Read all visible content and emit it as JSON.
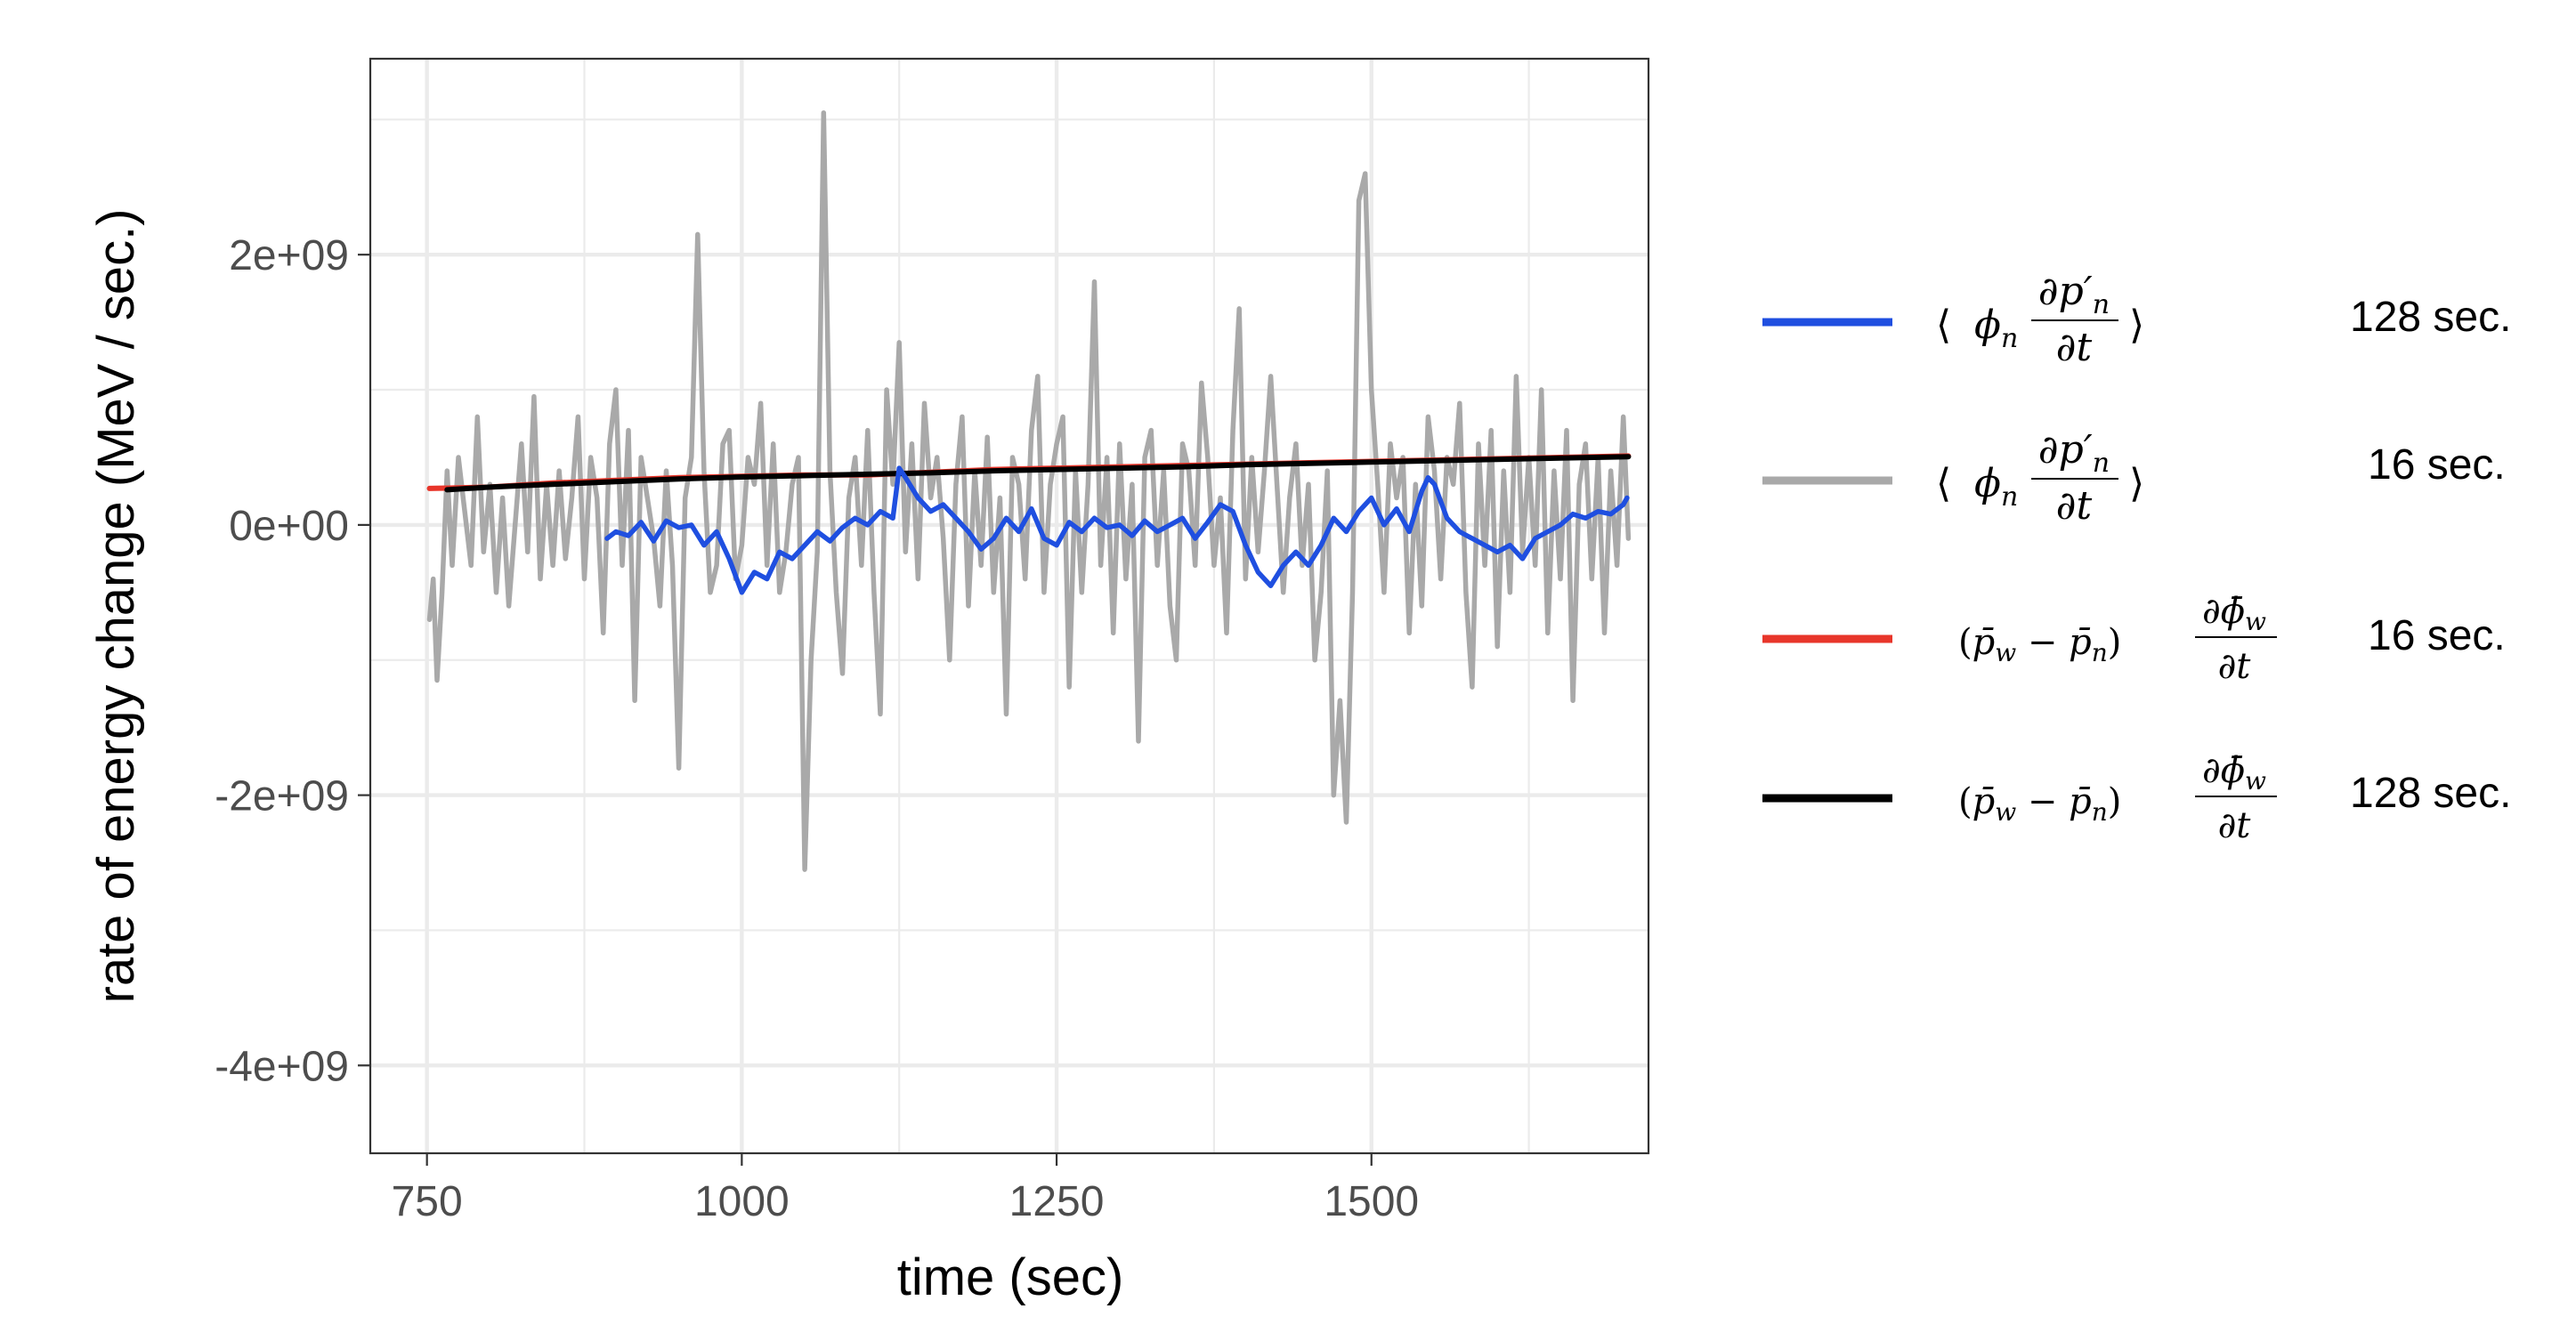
{
  "chart_data": {
    "type": "line",
    "xlabel": "time (sec)",
    "ylabel": "rate of energy change (MeV / sec.)",
    "xlim": [
      705,
      1720
    ],
    "ylim": [
      -4650000000.0,
      3450000000.0
    ],
    "x_ticks": [
      750,
      1000,
      1250,
      1500
    ],
    "x_tick_labels": [
      "750",
      "1000",
      "1250",
      "1500"
    ],
    "y_ticks": [
      -4000000000.0,
      -2000000000.0,
      0,
      2000000000.0
    ],
    "y_tick_labels": [
      "-4e+09",
      "-2e+09",
      "0e+00",
      "2e+09"
    ],
    "grid": true,
    "legend_position": "right",
    "series": [
      {
        "name": "⟨φn ∂p′n/∂t⟩ 128 sec.",
        "legend_formula": "⟨ φn ∂p′n/∂t ⟩",
        "legend_window": "128 sec.",
        "color": "#1f4fe0",
        "x": [
          893,
          900,
          910,
          920,
          930,
          940,
          950,
          960,
          970,
          980,
          990,
          1000,
          1010,
          1020,
          1030,
          1040,
          1050,
          1060,
          1070,
          1080,
          1090,
          1100,
          1110,
          1120,
          1125,
          1130,
          1140,
          1150,
          1160,
          1170,
          1180,
          1190,
          1200,
          1210,
          1220,
          1230,
          1240,
          1250,
          1260,
          1270,
          1280,
          1290,
          1300,
          1310,
          1320,
          1330,
          1340,
          1350,
          1360,
          1370,
          1380,
          1390,
          1400,
          1410,
          1420,
          1430,
          1440,
          1450,
          1460,
          1470,
          1480,
          1490,
          1500,
          1510,
          1520,
          1530,
          1540,
          1545,
          1550,
          1560,
          1570,
          1580,
          1590,
          1600,
          1610,
          1620,
          1630,
          1640,
          1650,
          1660,
          1670,
          1680,
          1690,
          1700,
          1703
        ],
        "values": [
          -100000000.0,
          -50000000.0,
          -80000000.0,
          20000000.0,
          -120000000.0,
          30000000.0,
          -20000000.0,
          0.0,
          -150000000.0,
          -50000000.0,
          -250000000.0,
          -500000000.0,
          -350000000.0,
          -400000000.0,
          -200000000.0,
          -250000000.0,
          -150000000.0,
          -50000000.0,
          -120000000.0,
          -20000000.0,
          50000000.0,
          0.0,
          100000000.0,
          50000000.0,
          420000000.0,
          350000000.0,
          200000000.0,
          100000000.0,
          150000000.0,
          50000000.0,
          -50000000.0,
          -180000000.0,
          -100000000.0,
          50000000.0,
          -50000000.0,
          120000000.0,
          -100000000.0,
          -150000000.0,
          20000000.0,
          -50000000.0,
          50000000.0,
          -20000000.0,
          0.0,
          -80000000.0,
          30000000.0,
          -50000000.0,
          0.0,
          50000000.0,
          -100000000.0,
          20000000.0,
          150000000.0,
          100000000.0,
          -150000000.0,
          -350000000.0,
          -450000000.0,
          -300000000.0,
          -200000000.0,
          -300000000.0,
          -150000000.0,
          50000000.0,
          -50000000.0,
          100000000.0,
          200000000.0,
          0.0,
          120000000.0,
          -50000000.0,
          250000000.0,
          350000000.0,
          300000000.0,
          50000000.0,
          -50000000.0,
          -100000000.0,
          -150000000.0,
          -200000000.0,
          -150000000.0,
          -250000000.0,
          -100000000.0,
          -50000000.0,
          0.0,
          80000000.0,
          50000000.0,
          100000000.0,
          80000000.0,
          150000000.0,
          200000000.0
        ]
      },
      {
        "name": "⟨φn ∂p′n/∂t⟩ 16 sec.",
        "legend_formula": "⟨ φn ∂p′n/∂t ⟩",
        "legend_window": "16 sec.",
        "color": "#a9a9a9",
        "x": [
          752,
          755,
          758,
          762,
          766,
          770,
          775,
          780,
          785,
          790,
          795,
          800,
          805,
          810,
          815,
          820,
          825,
          830,
          835,
          840,
          845,
          850,
          855,
          860,
          865,
          870,
          875,
          880,
          885,
          890,
          895,
          900,
          905,
          910,
          915,
          920,
          925,
          930,
          935,
          940,
          945,
          950,
          955,
          960,
          965,
          970,
          975,
          980,
          985,
          990,
          995,
          1000,
          1005,
          1010,
          1015,
          1020,
          1025,
          1030,
          1035,
          1040,
          1045,
          1050,
          1055,
          1060,
          1065,
          1070,
          1075,
          1080,
          1085,
          1090,
          1095,
          1100,
          1105,
          1110,
          1115,
          1120,
          1125,
          1130,
          1135,
          1140,
          1145,
          1150,
          1155,
          1160,
          1165,
          1170,
          1175,
          1180,
          1185,
          1190,
          1195,
          1200,
          1205,
          1210,
          1215,
          1220,
          1225,
          1230,
          1235,
          1240,
          1245,
          1250,
          1255,
          1260,
          1265,
          1270,
          1275,
          1280,
          1285,
          1290,
          1295,
          1300,
          1305,
          1310,
          1315,
          1320,
          1325,
          1330,
          1335,
          1340,
          1345,
          1350,
          1355,
          1360,
          1365,
          1370,
          1375,
          1380,
          1385,
          1390,
          1395,
          1400,
          1405,
          1410,
          1415,
          1420,
          1425,
          1430,
          1435,
          1440,
          1445,
          1450,
          1455,
          1460,
          1465,
          1470,
          1475,
          1480,
          1485,
          1490,
          1495,
          1500,
          1505,
          1510,
          1515,
          1520,
          1525,
          1530,
          1535,
          1540,
          1545,
          1550,
          1555,
          1560,
          1565,
          1570,
          1575,
          1580,
          1585,
          1590,
          1595,
          1600,
          1605,
          1610,
          1615,
          1620,
          1625,
          1630,
          1635,
          1640,
          1645,
          1650,
          1655,
          1660,
          1665,
          1670,
          1675,
          1680,
          1685,
          1690,
          1695,
          1700,
          1704
        ],
        "values": [
          -700000000.0,
          -400000000.0,
          -1150000000.0,
          -500000000.0,
          400000000.0,
          -300000000.0,
          500000000.0,
          100000000.0,
          -300000000.0,
          800000000.0,
          -200000000.0,
          300000000.0,
          -500000000.0,
          200000000.0,
          -600000000.0,
          0.0,
          600000000.0,
          -200000000.0,
          950000000.0,
          -400000000.0,
          300000000.0,
          -300000000.0,
          400000000.0,
          -250000000.0,
          200000000.0,
          800000000.0,
          -400000000.0,
          500000000.0,
          200000000.0,
          -800000000.0,
          600000000.0,
          1000000000.0,
          -300000000.0,
          700000000.0,
          -1300000000.0,
          500000000.0,
          200000000.0,
          -100000000.0,
          -600000000.0,
          400000000.0,
          -300000000.0,
          -1800000000.0,
          200000000.0,
          500000000.0,
          2150000000.0,
          400000000.0,
          -500000000.0,
          -300000000.0,
          600000000.0,
          700000000.0,
          -400000000.0,
          -150000000.0,
          500000000.0,
          300000000.0,
          900000000.0,
          -300000000.0,
          600000000.0,
          -500000000.0,
          -200000000.0,
          300000000.0,
          500000000.0,
          -2550000000.0,
          -1000000000.0,
          -200000000.0,
          3050000000.0,
          400000000.0,
          -500000000.0,
          -1100000000.0,
          200000000.0,
          500000000.0,
          -300000000.0,
          700000000.0,
          -500000000.0,
          -1400000000.0,
          1000000000.0,
          300000000.0,
          1350000000.0,
          -200000000.0,
          600000000.0,
          -400000000.0,
          900000000.0,
          200000000.0,
          500000000.0,
          -100000000.0,
          -1000000000.0,
          300000000.0,
          800000000.0,
          -600000000.0,
          400000000.0,
          -300000000.0,
          650000000.0,
          -500000000.0,
          200000000.0,
          -1400000000.0,
          500000000.0,
          300000000.0,
          -400000000.0,
          700000000.0,
          1100000000.0,
          -500000000.0,
          300000000.0,
          600000000.0,
          800000000.0,
          -1200000000.0,
          400000000.0,
          -500000000.0,
          300000000.0,
          1800000000.0,
          -300000000.0,
          500000000.0,
          -800000000.0,
          600000000.0,
          -400000000.0,
          300000000.0,
          -1600000000.0,
          500000000.0,
          700000000.0,
          -300000000.0,
          400000000.0,
          -600000000.0,
          -1000000000.0,
          600000000.0,
          400000000.0,
          -300000000.0,
          1050000000.0,
          500000000.0,
          -300000000.0,
          200000000.0,
          -800000000.0,
          700000000.0,
          1600000000.0,
          -400000000.0,
          500000000.0,
          -200000000.0,
          400000000.0,
          1100000000.0,
          300000000.0,
          -500000000.0,
          200000000.0,
          600000000.0,
          -300000000.0,
          300000000.0,
          -1000000000.0,
          -500000000.0,
          400000000.0,
          -2000000000.0,
          -1300000000.0,
          -2200000000.0,
          -500000000.0,
          2400000000.0,
          2600000000.0,
          1000000000.0,
          300000000.0,
          -500000000.0,
          600000000.0,
          200000000.0,
          500000000.0,
          -800000000.0,
          300000000.0,
          -600000000.0,
          800000000.0,
          400000000.0,
          -400000000.0,
          500000000.0,
          300000000.0,
          900000000.0,
          -500000000.0,
          -1200000000.0,
          600000000.0,
          -300000000.0,
          700000000.0,
          -900000000.0,
          400000000.0,
          -500000000.0,
          1100000000.0,
          -200000000.0,
          500000000.0,
          -300000000.0,
          1000000000.0,
          -800000000.0,
          400000000.0,
          -400000000.0,
          700000000.0,
          -1300000000.0,
          300000000.0,
          600000000.0,
          -400000000.0,
          500000000.0,
          -800000000.0,
          400000000.0,
          -300000000.0,
          800000000.0,
          -100000000.0
        ]
      },
      {
        "name": "(p̄w − p̄n) ∂φ̄w/∂t 16 sec.",
        "legend_formula": "(p̄w − p̄n) ∂φ̄w/∂t",
        "legend_window": "16 sec.",
        "color": "#e8352a",
        "x": [
          752,
          800,
          850,
          900,
          950,
          1000,
          1050,
          1100,
          1150,
          1200,
          1250,
          1300,
          1350,
          1400,
          1450,
          1500,
          1550,
          1600,
          1650,
          1704
        ],
        "values": [
          270000000.0,
          280000000.0,
          310000000.0,
          330000000.0,
          350000000.0,
          360000000.0,
          370000000.0,
          370000000.0,
          390000000.0,
          410000000.0,
          420000000.0,
          430000000.0,
          440000000.0,
          450000000.0,
          460000000.0,
          470000000.0,
          480000000.0,
          490000000.0,
          500000000.0,
          510000000.0
        ]
      },
      {
        "name": "(p̄w − p̄n) ∂φ̄w/∂t 128 sec.",
        "legend_formula": "(p̄w − p̄n) ∂φ̄w/∂t",
        "legend_window": "128 sec.",
        "color": "#000000",
        "x": [
          766,
          800,
          850,
          900,
          950,
          1000,
          1050,
          1100,
          1150,
          1200,
          1250,
          1300,
          1350,
          1400,
          1450,
          1500,
          1550,
          1600,
          1650,
          1704
        ],
        "values": [
          260000000.0,
          280000000.0,
          300000000.0,
          320000000.0,
          340000000.0,
          355000000.0,
          365000000.0,
          375000000.0,
          385000000.0,
          400000000.0,
          410000000.0,
          420000000.0,
          430000000.0,
          445000000.0,
          455000000.0,
          465000000.0,
          475000000.0,
          485000000.0,
          495000000.0,
          505000000.0
        ]
      }
    ]
  }
}
